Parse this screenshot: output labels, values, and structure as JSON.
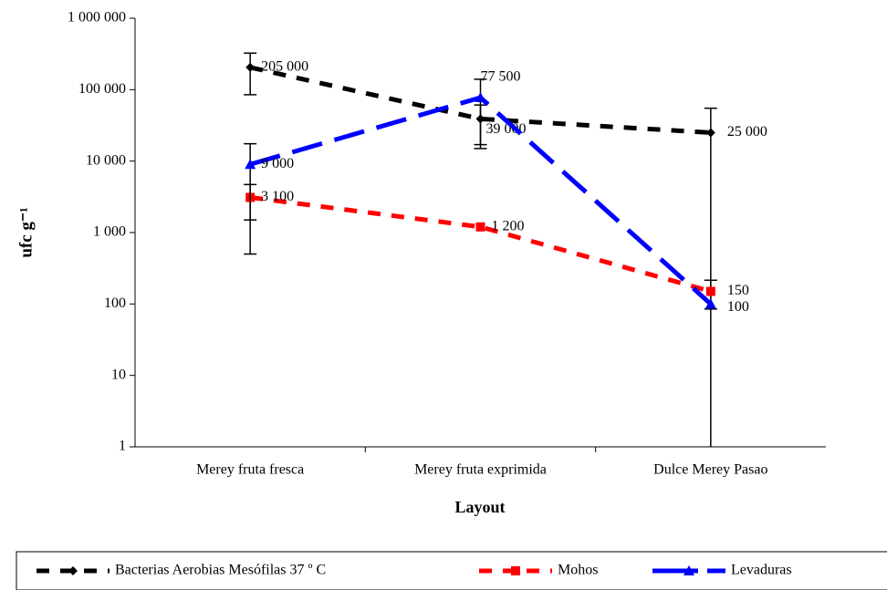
{
  "chart_data": {
    "type": "line",
    "x_label": "Layout",
    "y_label": "ufc g⁻¹",
    "categories": [
      "Merey fruta fresca",
      "Merey fruta exprimida",
      "Dulce Merey Pasao"
    ],
    "log_scale": true,
    "ylim": [
      1,
      1000000
    ],
    "yticks": [
      1,
      10,
      100,
      {
        "value": 1000,
        "label": "1 000"
      },
      {
        "value": 10000,
        "label": "10 000"
      },
      {
        "value": 100000,
        "label": "100 000"
      },
      {
        "value": 1000000,
        "label": "1 000 000"
      }
    ],
    "legend": "bottom",
    "series": [
      {
        "name": "Bacterias Aerobias Mesófilas 37 º C",
        "color": "#000000",
        "marker": "diamond",
        "values": [
          205000,
          39000,
          25000
        ],
        "value_labels": [
          "205 000",
          "39 000",
          "25 000"
        ],
        "errors": [
          120000,
          22000,
          30000
        ]
      },
      {
        "name": "Mohos",
        "color": "#ff0000",
        "marker": "square",
        "values": [
          3100,
          1200,
          150
        ],
        "value_labels": [
          "3 100",
          "1 200",
          "150"
        ],
        "errors": [
          1600,
          null,
          65
        ]
      },
      {
        "name": "Levaduras",
        "color": "#0000ff",
        "marker": "triangle",
        "values": [
          9000,
          77500,
          100
        ],
        "value_labels": [
          "9 000",
          "77 500",
          "100"
        ],
        "errors": [
          8500,
          62500,
          null
        ]
      }
    ]
  }
}
